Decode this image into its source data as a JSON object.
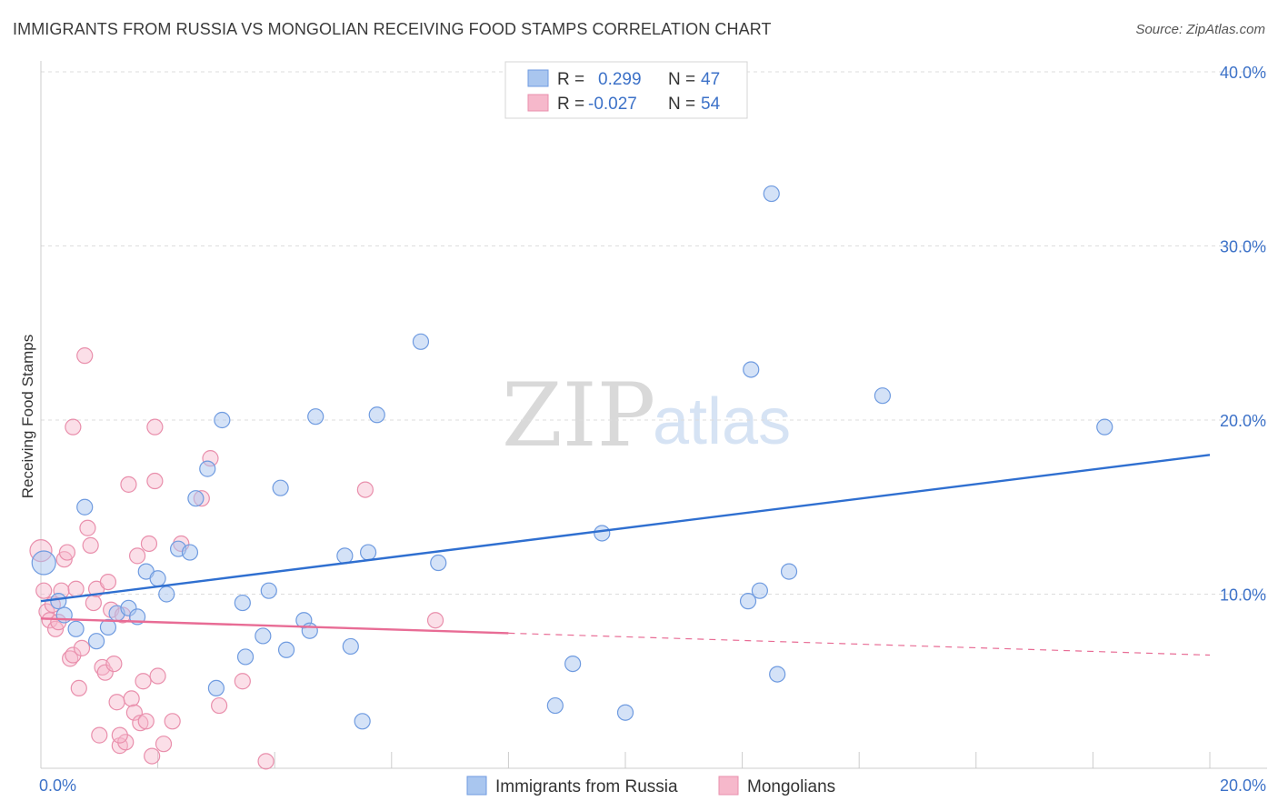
{
  "header": {
    "title": "IMMIGRANTS FROM RUSSIA VS MONGOLIAN RECEIVING FOOD STAMPS CORRELATION CHART",
    "source": "Source: ZipAtlas.com"
  },
  "watermark": {
    "zip": "ZIP",
    "atlas": "atlas"
  },
  "legend": {
    "rows": [
      {
        "r_label": "R =",
        "r_value": "0.299",
        "n_label": "N =",
        "n_value": "47",
        "color": "#a9c6ef"
      },
      {
        "r_label": "R =",
        "r_value": "-0.027",
        "n_label": "N =",
        "n_value": "54",
        "color": "#f6b8cb"
      }
    ]
  },
  "colors": {
    "blue_fill": "#a9c6ef",
    "blue_stroke": "#6f9be0",
    "blue_line": "#2f6fd0",
    "pink_fill": "#f6b8cb",
    "pink_stroke": "#e98fac",
    "pink_line": "#e86c95",
    "axis_text": "#3d72c8",
    "grid": "#dddddd"
  },
  "chart_data": {
    "type": "scatter",
    "title": "IMMIGRANTS FROM RUSSIA VS MONGOLIAN RECEIVING FOOD STAMPS CORRELATION CHART",
    "xlabel": "",
    "ylabel": "Receiving Food Stamps",
    "xlim": [
      0,
      20
    ],
    "ylim": [
      0,
      40
    ],
    "x_tick_labels": [
      "0.0%",
      "20.0%"
    ],
    "y_ticks": [
      10,
      20,
      30,
      40
    ],
    "y_tick_labels": [
      "10.0%",
      "20.0%",
      "30.0%",
      "40.0%"
    ],
    "series": [
      {
        "name": "Immigrants from Russia",
        "r": 0.299,
        "n": 47,
        "trend": {
          "x": [
            0,
            20
          ],
          "y": [
            9.6,
            18.0
          ],
          "dashed_from": null
        },
        "points": [
          [
            0.05,
            11.8
          ],
          [
            0.3,
            9.6
          ],
          [
            0.4,
            8.8
          ],
          [
            0.6,
            8.0
          ],
          [
            0.75,
            15.0
          ],
          [
            0.95,
            7.3
          ],
          [
            1.15,
            8.1
          ],
          [
            1.3,
            8.9
          ],
          [
            1.5,
            9.2
          ],
          [
            1.65,
            8.7
          ],
          [
            1.8,
            11.3
          ],
          [
            2.0,
            10.9
          ],
          [
            2.15,
            10.0
          ],
          [
            2.35,
            12.6
          ],
          [
            2.55,
            12.4
          ],
          [
            2.65,
            15.5
          ],
          [
            2.85,
            17.2
          ],
          [
            3.0,
            4.6
          ],
          [
            3.1,
            20.0
          ],
          [
            3.45,
            9.5
          ],
          [
            3.5,
            6.4
          ],
          [
            3.8,
            7.6
          ],
          [
            3.9,
            10.2
          ],
          [
            4.1,
            16.1
          ],
          [
            4.2,
            6.8
          ],
          [
            4.5,
            8.5
          ],
          [
            4.6,
            7.9
          ],
          [
            4.7,
            20.2
          ],
          [
            5.2,
            12.2
          ],
          [
            5.3,
            7.0
          ],
          [
            5.5,
            2.7
          ],
          [
            5.6,
            12.4
          ],
          [
            5.75,
            20.3
          ],
          [
            6.5,
            24.5
          ],
          [
            6.8,
            11.8
          ],
          [
            8.8,
            3.6
          ],
          [
            9.1,
            6.0
          ],
          [
            9.6,
            13.5
          ],
          [
            10.0,
            3.2
          ],
          [
            12.1,
            9.6
          ],
          [
            12.3,
            10.2
          ],
          [
            12.15,
            22.9
          ],
          [
            12.5,
            33.0
          ],
          [
            12.6,
            5.4
          ],
          [
            12.8,
            11.3
          ],
          [
            14.4,
            21.4
          ],
          [
            18.2,
            19.6
          ]
        ]
      },
      {
        "name": "Mongolians",
        "r": -0.027,
        "n": 54,
        "trend": {
          "x": [
            0,
            20
          ],
          "y": [
            8.6,
            6.5
          ],
          "dashed_from": 8.0
        },
        "points": [
          [
            0.0,
            12.5
          ],
          [
            0.05,
            10.2
          ],
          [
            0.1,
            9.0
          ],
          [
            0.15,
            8.5
          ],
          [
            0.2,
            9.4
          ],
          [
            0.25,
            8.0
          ],
          [
            0.3,
            8.4
          ],
          [
            0.35,
            10.2
          ],
          [
            0.4,
            12.0
          ],
          [
            0.45,
            12.4
          ],
          [
            0.5,
            6.3
          ],
          [
            0.55,
            6.5
          ],
          [
            0.6,
            10.3
          ],
          [
            0.65,
            4.6
          ],
          [
            0.7,
            6.9
          ],
          [
            0.75,
            23.7
          ],
          [
            0.8,
            13.8
          ],
          [
            0.85,
            12.8
          ],
          [
            0.9,
            9.5
          ],
          [
            0.95,
            10.3
          ],
          [
            1.0,
            1.9
          ],
          [
            1.05,
            5.8
          ],
          [
            1.1,
            5.5
          ],
          [
            1.15,
            10.7
          ],
          [
            1.2,
            9.1
          ],
          [
            1.25,
            6.0
          ],
          [
            1.3,
            3.8
          ],
          [
            1.35,
            1.3
          ],
          [
            1.4,
            8.8
          ],
          [
            1.45,
            1.5
          ],
          [
            1.5,
            16.3
          ],
          [
            1.55,
            4.0
          ],
          [
            1.6,
            3.2
          ],
          [
            1.65,
            12.2
          ],
          [
            1.7,
            2.6
          ],
          [
            1.75,
            5.0
          ],
          [
            1.8,
            2.7
          ],
          [
            1.85,
            12.9
          ],
          [
            1.9,
            0.7
          ],
          [
            1.95,
            16.5
          ],
          [
            2.0,
            5.3
          ],
          [
            2.1,
            1.4
          ],
          [
            2.25,
            2.7
          ],
          [
            2.4,
            12.9
          ],
          [
            2.75,
            15.5
          ],
          [
            2.9,
            17.8
          ],
          [
            3.05,
            3.6
          ],
          [
            3.45,
            5.0
          ],
          [
            3.85,
            0.4
          ],
          [
            5.55,
            16.0
          ],
          [
            6.75,
            8.5
          ],
          [
            1.95,
            19.6
          ],
          [
            0.55,
            19.6
          ],
          [
            1.35,
            1.9
          ]
        ]
      }
    ]
  },
  "bottom_legend": {
    "items": [
      {
        "label": "Immigrants from Russia",
        "color": "#a9c6ef"
      },
      {
        "label": "Mongolians",
        "color": "#f6b8cb"
      }
    ]
  }
}
